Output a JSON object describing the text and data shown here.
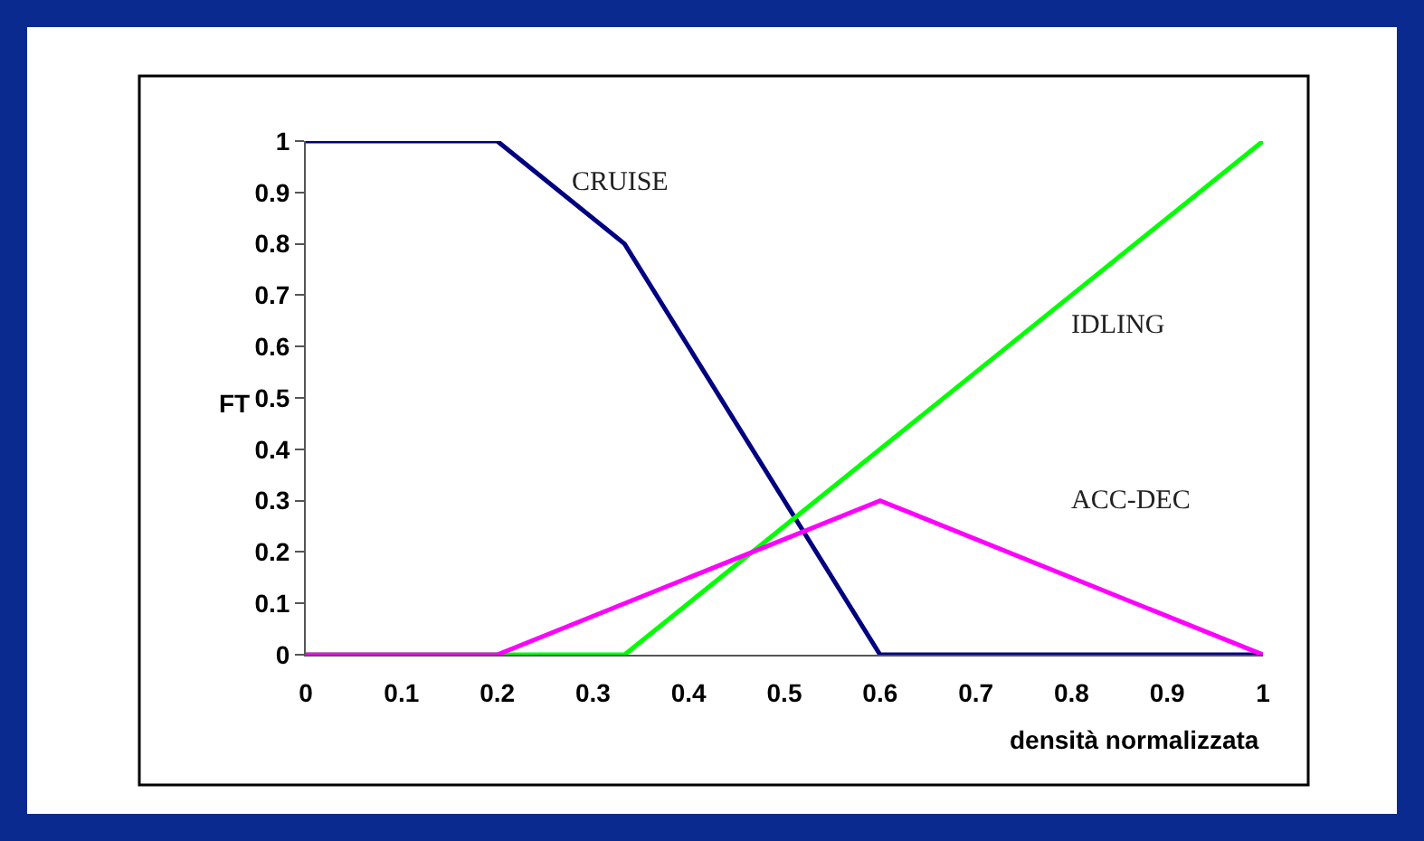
{
  "chart_data": {
    "type": "line",
    "xlabel": "densità normalizzata",
    "ylabel": "FT",
    "xlim": [
      0,
      1
    ],
    "ylim": [
      0,
      1
    ],
    "xticks": [
      0,
      0.1,
      0.2,
      0.3,
      0.4,
      0.5,
      0.6,
      0.7,
      0.8,
      0.9,
      1
    ],
    "yticks": [
      0,
      0.1,
      0.2,
      0.3,
      0.4,
      0.5,
      0.6,
      0.7,
      0.8,
      0.9,
      1
    ],
    "legend": false,
    "marker": "none",
    "line_style": "solid",
    "series": [
      {
        "name": "CRUISE",
        "color": "#000080",
        "x": [
          0,
          0.2,
          0.333,
          0.6,
          1
        ],
        "values": [
          1,
          1,
          0.8,
          0,
          0
        ]
      },
      {
        "name": "IDLING",
        "color": "#00ff00",
        "x": [
          0,
          0.333,
          1
        ],
        "values": [
          0,
          0,
          1
        ]
      },
      {
        "name": "ACC-DEC",
        "color": "#ff00ff",
        "x": [
          0,
          0.2,
          0.6,
          1
        ],
        "values": [
          0,
          0,
          0.3,
          0
        ]
      }
    ]
  }
}
